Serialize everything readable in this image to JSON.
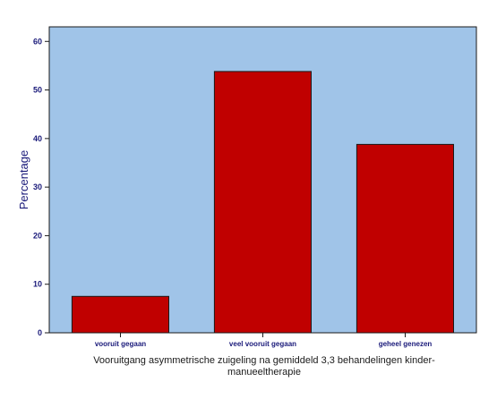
{
  "chart_data": {
    "type": "bar",
    "categories": [
      "vooruit gegaan",
      "veel vooruit gegaan",
      "geheel genezen"
    ],
    "values": [
      7.5,
      53.8,
      38.8
    ],
    "ylabel": "Percentage",
    "xlabel_lines": [
      "Vooruitgang asymmetrische zuigeling na gemiddeld 3,3 behandelingen kinder-",
      "manueeltherapie"
    ],
    "ylim": [
      0,
      63
    ],
    "yticks": [
      "0",
      "10",
      "20",
      "30",
      "40",
      "50",
      "60"
    ],
    "grid": false,
    "colors": {
      "plot_background": "#a0c4e8",
      "bar_fill": "#c00000",
      "bar_stroke": "#1a1a1a",
      "axis_text": "#1a1a7a"
    }
  }
}
